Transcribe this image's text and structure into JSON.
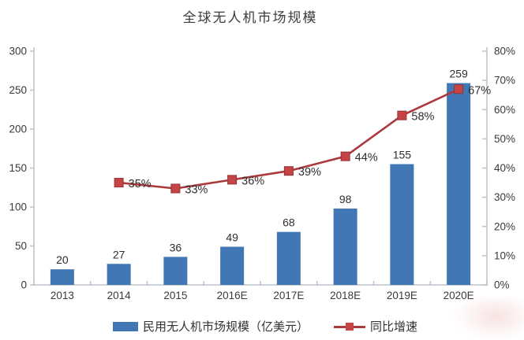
{
  "title": "全球无人机市场规模",
  "legend": {
    "bar_label": "民用无人机市场规模（亿美元）",
    "line_label": "同比增速"
  },
  "colors": {
    "bar": "#4277b5",
    "line": "#ac393c",
    "marker": "#c54546",
    "marker_border": "#943031",
    "axis": "#bcc3cc",
    "text": "#3a3a3a"
  },
  "chart_data": {
    "type": "combo-bar-line",
    "title": "全球无人机市场规模",
    "categories": [
      "2013",
      "2014",
      "2015",
      "2016E",
      "2017E",
      "2018E",
      "2019E",
      "2020E"
    ],
    "series": [
      {
        "name": "民用无人机市场规模（亿美元）",
        "type": "bar",
        "axis": "left",
        "values": [
          20,
          27,
          36,
          49,
          68,
          98,
          155,
          259
        ],
        "data_labels": [
          "20",
          "27",
          "36",
          "49",
          "68",
          "98",
          "155",
          "259"
        ]
      },
      {
        "name": "同比增速",
        "type": "line",
        "axis": "right",
        "values": [
          null,
          35,
          33,
          36,
          39,
          44,
          58,
          67
        ],
        "data_labels": [
          "",
          "35%",
          "33%",
          "36%",
          "39%",
          "44%",
          "58%",
          "67%"
        ]
      }
    ],
    "left_axis": {
      "min": 0,
      "max": 300,
      "step": 50,
      "tick_labels": [
        "0",
        "50",
        "100",
        "150",
        "200",
        "250",
        "300"
      ]
    },
    "right_axis": {
      "min": 0,
      "max": 80,
      "step": 10,
      "tick_labels": [
        "0%",
        "10%",
        "20%",
        "30%",
        "40%",
        "50%",
        "60%",
        "70%",
        "80%"
      ]
    },
    "grid": false,
    "legend_position": "bottom"
  }
}
